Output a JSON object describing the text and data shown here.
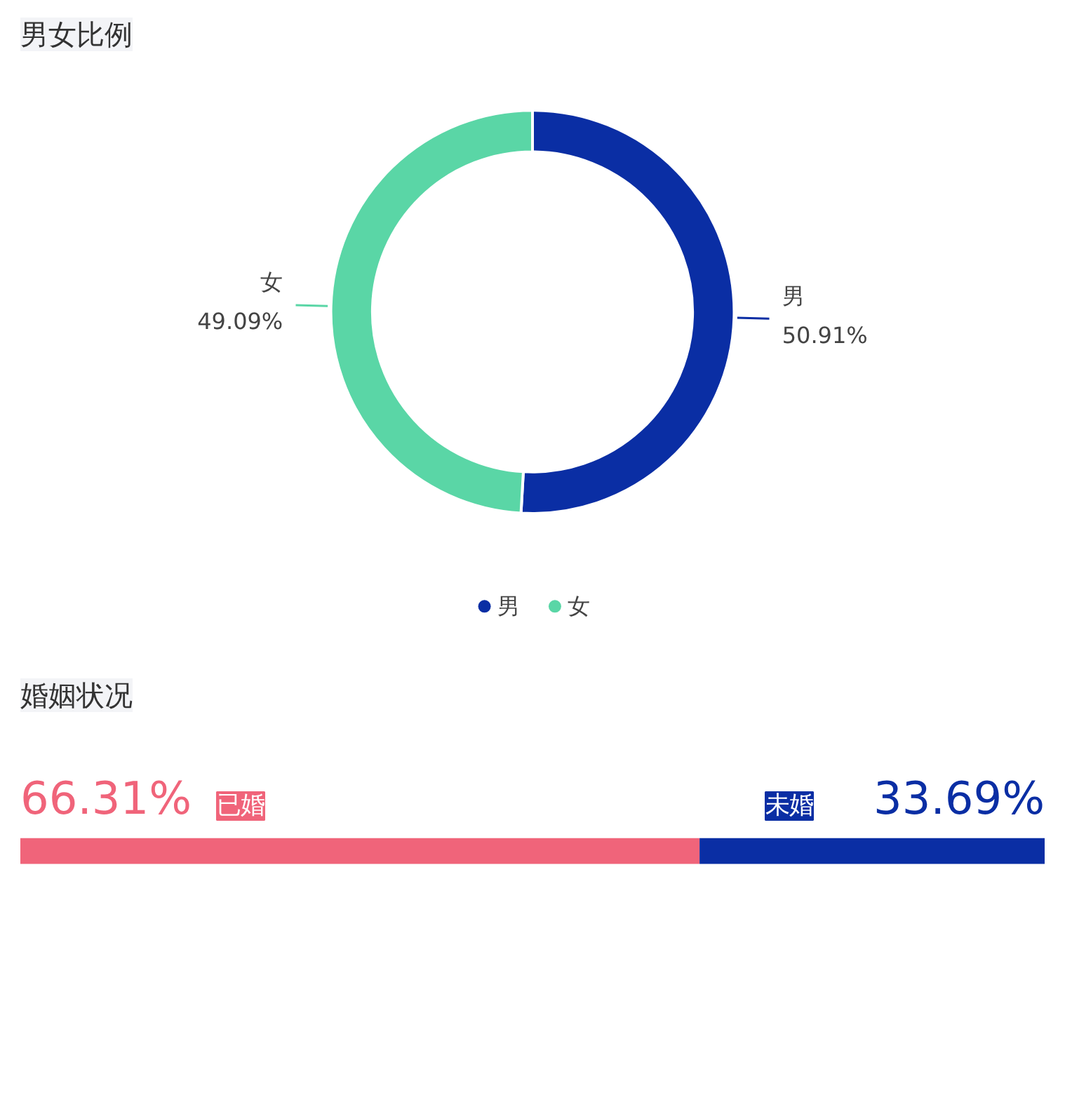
{
  "chart_data": [
    {
      "type": "donut",
      "title": "男女比例",
      "categories": [
        "男",
        "女"
      ],
      "values": [
        50.91,
        49.09
      ],
      "colors": [
        "#0a2ea4",
        "#5ad6a6"
      ],
      "value_labels": [
        "50.91%",
        "49.09%"
      ],
      "legend": "bottom"
    },
    {
      "type": "bar",
      "title": "婚姻状况",
      "orientation": "horizontal",
      "stacked": true,
      "tick_labels": false,
      "categories": [
        null
      ],
      "series": [
        {
          "name": "已婚",
          "color": "#f0647a",
          "values": [
            66.31
          ],
          "value_labels": [
            "66.31%"
          ]
        },
        {
          "name": "未婚",
          "color": "#0a2ea4",
          "values": [
            33.69
          ],
          "value_labels": [
            "33.69%"
          ]
        }
      ]
    }
  ]
}
